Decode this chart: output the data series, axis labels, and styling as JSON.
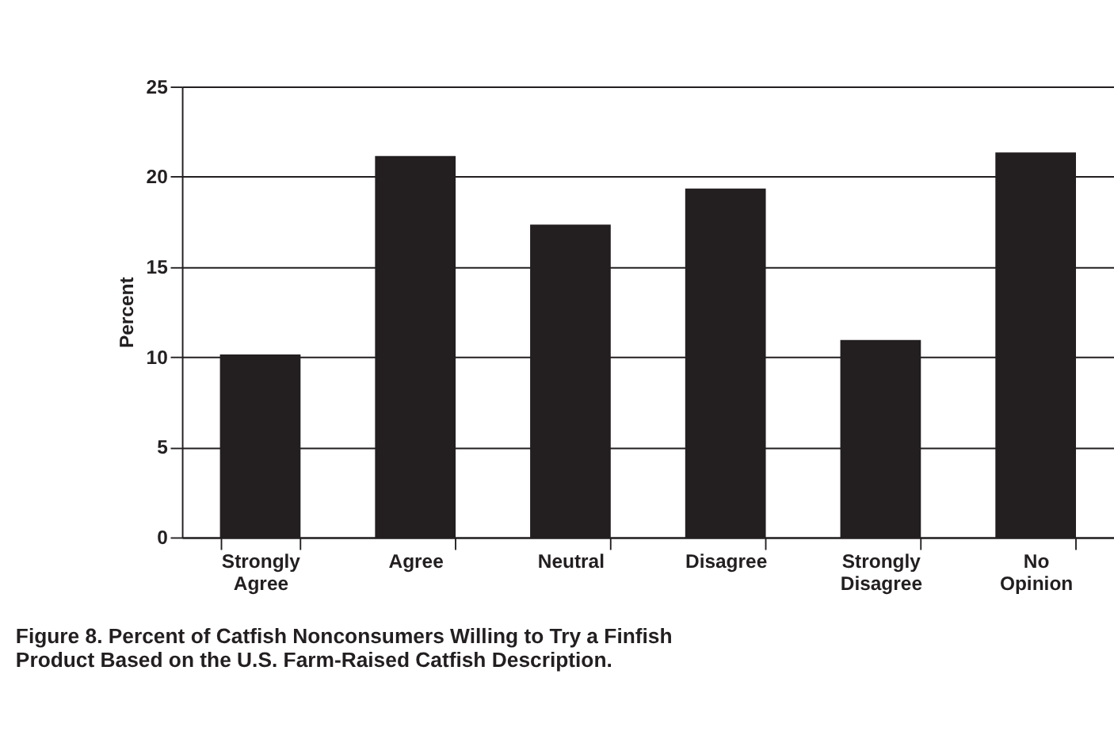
{
  "chart_data": {
    "type": "bar",
    "ylabel": "Percent",
    "categories": [
      "Strongly Agree",
      "Agree",
      "Neutral",
      "Disagree",
      "Strongly Disagree",
      "No Opinion"
    ],
    "values": [
      10.1,
      21.1,
      17.3,
      19.3,
      10.9,
      21.3
    ],
    "color": "#231f20",
    "ylim": [
      0,
      25
    ],
    "yticks": [
      0,
      5,
      10,
      15,
      20,
      25
    ],
    "grid": "y",
    "annotations": [
      "Figure 8. Percent of Catfish Nonconsumers Willing to Try a Finfish Product Based on the U.S. Farm-Raised Catfish Description."
    ]
  }
}
